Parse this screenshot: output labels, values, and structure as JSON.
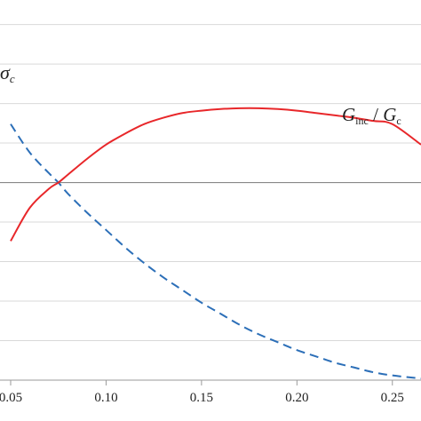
{
  "chart_data": {
    "type": "line",
    "xlabel": "",
    "ylabel": "",
    "xlim": [
      0.05,
      0.265
    ],
    "ylim": [
      -1.25,
      1.2
    ],
    "x_ticks": [
      0.05,
      0.1,
      0.15,
      0.2,
      0.25
    ],
    "x_tick_labels": [
      "0.05",
      "0.10",
      "0.15",
      "0.20",
      "0.25"
    ],
    "y_gridlines": [
      -1.0,
      -0.75,
      -0.5,
      -0.25,
      0.25,
      0.5,
      0.75,
      1.0
    ],
    "reference_line_y": 0,
    "grid": true,
    "series": [
      {
        "name": "G_inc / G_c",
        "color": "#e8272a",
        "style": "solid",
        "x": [
          0.05,
          0.06,
          0.07,
          0.075,
          0.08,
          0.09,
          0.1,
          0.11,
          0.12,
          0.13,
          0.14,
          0.15,
          0.16,
          0.17,
          0.18,
          0.19,
          0.2,
          0.21,
          0.22,
          0.23,
          0.24,
          0.25,
          0.265
        ],
        "y": [
          -0.37,
          -0.16,
          -0.04,
          0.0,
          0.05,
          0.15,
          0.24,
          0.31,
          0.37,
          0.41,
          0.44,
          0.455,
          0.465,
          0.47,
          0.47,
          0.465,
          0.455,
          0.44,
          0.425,
          0.41,
          0.39,
          0.37,
          0.24
        ]
      },
      {
        "name": "σ_c",
        "color": "#2c6fb8",
        "style": "dashed",
        "x": [
          0.05,
          0.06,
          0.07,
          0.075,
          0.08,
          0.09,
          0.1,
          0.11,
          0.12,
          0.13,
          0.14,
          0.15,
          0.16,
          0.17,
          0.18,
          0.19,
          0.2,
          0.21,
          0.22,
          0.23,
          0.24,
          0.25,
          0.265
        ],
        "y": [
          0.37,
          0.19,
          0.06,
          0.0,
          -0.07,
          -0.19,
          -0.3,
          -0.41,
          -0.51,
          -0.6,
          -0.68,
          -0.76,
          -0.83,
          -0.9,
          -0.96,
          -1.01,
          -1.06,
          -1.1,
          -1.14,
          -1.17,
          -1.2,
          -1.22,
          -1.24
        ]
      }
    ],
    "labels": {
      "sigma_main": "σ",
      "sigma_sub": "c",
      "g_main1": "G",
      "g_sub1": "inc",
      "g_sep": " / ",
      "g_main2": "G",
      "g_sub2": "c"
    }
  }
}
